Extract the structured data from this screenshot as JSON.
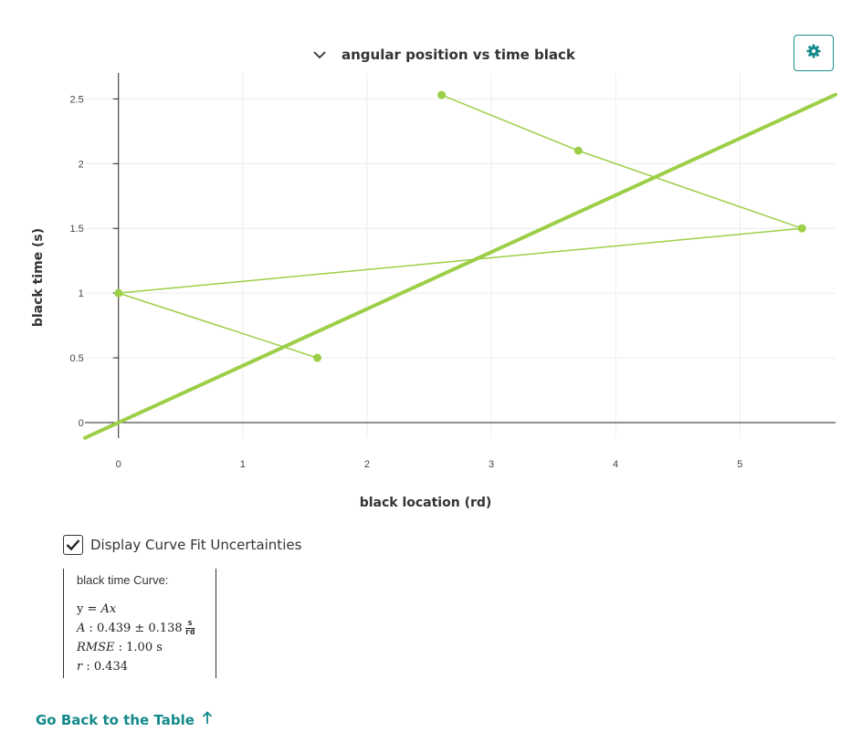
{
  "header": {
    "title": "angular position vs time black",
    "dropdown_icon": "chevron-down-icon",
    "settings_icon": "gear-icon"
  },
  "colors": {
    "accent": "#13898a",
    "series": "#9ccf47",
    "fit_line": "#9ccf47",
    "grid": "#ececec",
    "axis": "#222222"
  },
  "chart_data": {
    "type": "scatter",
    "xlabel": "black location (rd)",
    "ylabel": "black time (s)",
    "xlim": [
      -0.27,
      5.77
    ],
    "ylim": [
      -0.12,
      2.7
    ],
    "x_ticks": [
      0,
      1,
      2,
      3,
      4,
      5
    ],
    "y_ticks": [
      0,
      0.5,
      1,
      1.5,
      2,
      2.5
    ],
    "x_tick_labels": [
      "0",
      "1",
      "2",
      "3",
      "4",
      "5"
    ],
    "y_tick_labels": [
      "0",
      "0.5",
      "1",
      "1.5",
      "2",
      "2.5"
    ],
    "grid": true,
    "series": [
      {
        "connected": true,
        "points": [
          {
            "x": 2.6,
            "y": 2.53
          },
          {
            "x": 3.7,
            "y": 2.1
          },
          {
            "x": 5.5,
            "y": 1.5
          },
          {
            "x": 0.0,
            "y": 1.0
          },
          {
            "x": 1.6,
            "y": 0.5
          }
        ]
      }
    ],
    "fit": {
      "model": "y = Ax",
      "slope": 0.439
    }
  },
  "controls": {
    "uncertainty_checkbox_label": "Display Curve Fit Uncertainties",
    "uncertainty_checked": true
  },
  "fit_result": {
    "title": "black time Curve:",
    "equation_y": "y",
    "equation_rhs": " = Ax",
    "param_name": "A",
    "param_value": " : 0.439 ± 0.138",
    "param_unit_num": "s",
    "param_unit_den": "rd",
    "rmse_name": "RMSE",
    "rmse_value": " : 1.00 s",
    "r_name": "r",
    "r_value": " : 0.434"
  },
  "footer": {
    "back_link_label": "Go Back to the Table",
    "back_icon": "arrow-up-icon"
  }
}
